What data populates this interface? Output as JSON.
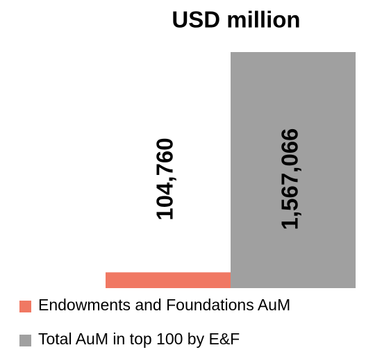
{
  "chart_data": {
    "type": "bar",
    "title": "USD million",
    "categories": [
      "Endowments and Foundations AuM",
      "Total AuM in top 100 by E&F"
    ],
    "values": [
      104760,
      1567066
    ],
    "value_labels": [
      "104,760",
      "1,567,066"
    ],
    "colors": [
      "#f07863",
      "#a0a0a0"
    ]
  }
}
